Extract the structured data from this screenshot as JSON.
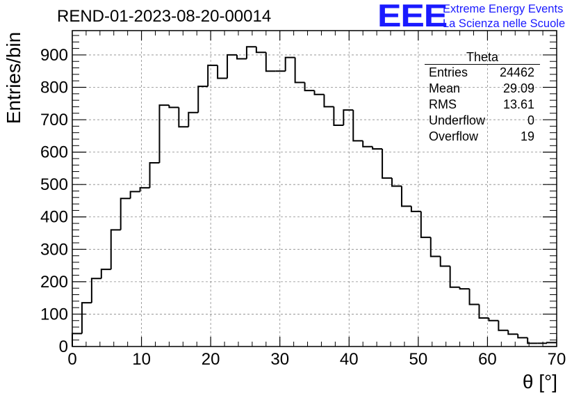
{
  "header": {
    "title": "REND-01-2023-08-20-00014",
    "logo_mark": "EEE",
    "logo_line1": "Extreme Energy Events",
    "logo_line2": "La Scienza nelle Scuole"
  },
  "stats_box": {
    "title": "Theta",
    "rows": [
      {
        "label": "Entries",
        "value": "24462"
      },
      {
        "label": "Mean",
        "value": "29.09"
      },
      {
        "label": "RMS",
        "value": "13.61"
      },
      {
        "label": "Underflow",
        "value": "0"
      },
      {
        "label": "Overflow",
        "value": "19"
      }
    ]
  },
  "colors": {
    "line": "#000000",
    "grid": "#888888",
    "logo": "#1a1aff"
  },
  "chart_data": {
    "type": "histogram",
    "xlabel": "θ [°]",
    "ylabel": "Entries/bin",
    "xlim": [
      0,
      70
    ],
    "ylim": [
      0,
      975
    ],
    "grid": true,
    "bin_width": 1.4,
    "x_ticks": [
      0,
      10,
      20,
      30,
      40,
      50,
      60,
      70
    ],
    "y_ticks": [
      0,
      100,
      200,
      300,
      400,
      500,
      600,
      700,
      800,
      900
    ],
    "values": [
      40,
      135,
      210,
      238,
      360,
      457,
      478,
      490,
      567,
      745,
      738,
      678,
      722,
      803,
      868,
      828,
      900,
      888,
      925,
      908,
      850,
      850,
      892,
      815,
      790,
      778,
      740,
      683,
      730,
      635,
      617,
      610,
      520,
      495,
      433,
      417,
      337,
      278,
      248,
      183,
      178,
      130,
      88,
      80,
      50,
      38,
      27,
      10,
      10,
      12
    ]
  }
}
